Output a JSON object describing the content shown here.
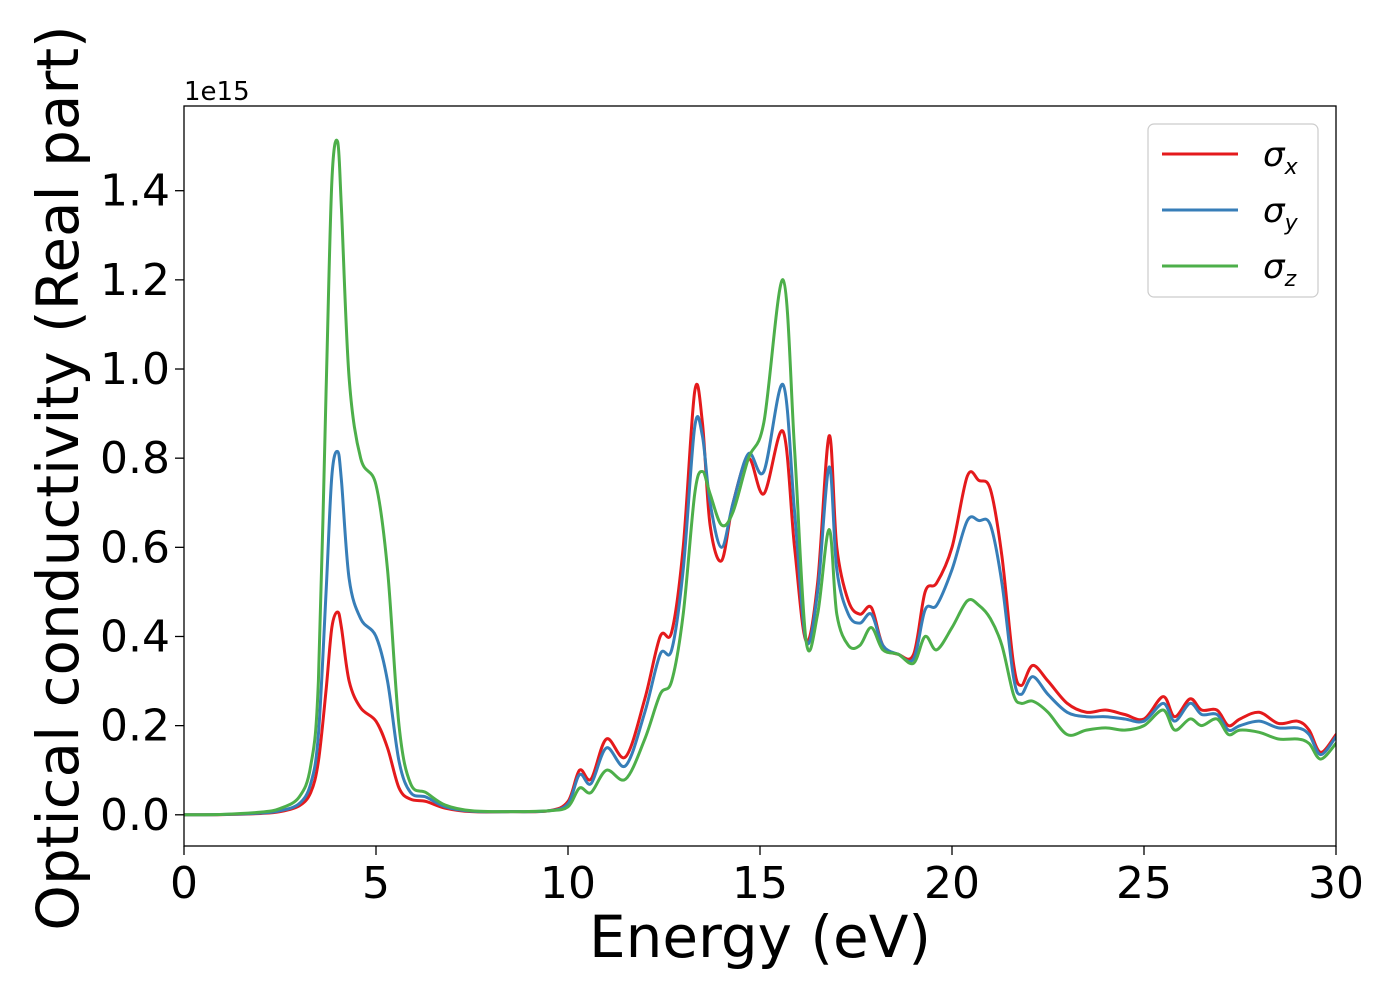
{
  "chart_data": {
    "type": "line",
    "xlabel": "Energy (eV)",
    "ylabel": "Optical conductivity (Real part)",
    "y_offset_label": "1e15",
    "xlim": [
      0,
      30
    ],
    "ylim": [
      -0.07,
      1.59
    ],
    "xticks": [
      0,
      5,
      10,
      15,
      20,
      25,
      30
    ],
    "yticks": [
      0.0,
      0.2,
      0.4,
      0.6,
      0.8,
      1.0,
      1.2,
      1.4
    ],
    "ytick_labels": [
      "0.0",
      "0.2",
      "0.4",
      "0.6",
      "0.8",
      "1.0",
      "1.2",
      "1.4"
    ],
    "grid": false,
    "legend_position": "top-right",
    "series": [
      {
        "name": "σx",
        "symbol": "σ",
        "subscript": "x",
        "color": "#e41a1c",
        "x": [
          0,
          1,
          2,
          2.5,
          3,
          3.3,
          3.5,
          3.7,
          3.85,
          4.0,
          4.1,
          4.3,
          4.6,
          5.0,
          5.3,
          5.6,
          5.9,
          6.3,
          6.8,
          7.5,
          8.5,
          9.5,
          10.0,
          10.3,
          10.6,
          11.0,
          11.5,
          12.0,
          12.4,
          12.7,
          13.0,
          13.3,
          13.5,
          13.7,
          14.0,
          14.3,
          14.7,
          15.1,
          15.6,
          15.9,
          16.2,
          16.5,
          16.8,
          17.0,
          17.3,
          17.6,
          17.9,
          18.2,
          18.6,
          19.0,
          19.3,
          19.6,
          20.0,
          20.4,
          20.7,
          21.0,
          21.3,
          21.6,
          21.8,
          22.1,
          22.5,
          23.0,
          23.5,
          24.0,
          24.5,
          25.0,
          25.5,
          25.8,
          26.2,
          26.5,
          26.9,
          27.2,
          27.5,
          28.0,
          28.5,
          29.0,
          29.3,
          29.6,
          30.0
        ],
        "y": [
          0,
          0.0005,
          0.003,
          0.007,
          0.02,
          0.05,
          0.12,
          0.28,
          0.42,
          0.455,
          0.42,
          0.3,
          0.24,
          0.21,
          0.15,
          0.06,
          0.035,
          0.03,
          0.015,
          0.007,
          0.007,
          0.009,
          0.03,
          0.1,
          0.08,
          0.17,
          0.13,
          0.26,
          0.4,
          0.41,
          0.6,
          0.95,
          0.88,
          0.65,
          0.57,
          0.7,
          0.8,
          0.72,
          0.86,
          0.6,
          0.39,
          0.52,
          0.85,
          0.6,
          0.48,
          0.45,
          0.465,
          0.38,
          0.36,
          0.36,
          0.5,
          0.52,
          0.6,
          0.76,
          0.75,
          0.73,
          0.58,
          0.34,
          0.29,
          0.335,
          0.3,
          0.25,
          0.23,
          0.235,
          0.225,
          0.215,
          0.265,
          0.22,
          0.26,
          0.235,
          0.235,
          0.2,
          0.215,
          0.23,
          0.205,
          0.21,
          0.19,
          0.14,
          0.18
        ]
      },
      {
        "name": "σy",
        "symbol": "σ",
        "subscript": "y",
        "color": "#377eb8",
        "x": [
          0,
          1,
          2,
          2.5,
          3,
          3.3,
          3.5,
          3.7,
          3.85,
          4.0,
          4.1,
          4.3,
          4.6,
          5.0,
          5.3,
          5.6,
          5.9,
          6.3,
          6.8,
          7.5,
          8.5,
          9.5,
          10.0,
          10.3,
          10.6,
          11.0,
          11.5,
          12.0,
          12.4,
          12.7,
          13.0,
          13.3,
          13.5,
          13.7,
          14.0,
          14.3,
          14.7,
          15.1,
          15.6,
          15.9,
          16.2,
          16.5,
          16.8,
          17.0,
          17.3,
          17.6,
          17.9,
          18.2,
          18.6,
          19.0,
          19.3,
          19.6,
          20.0,
          20.4,
          20.7,
          21.0,
          21.3,
          21.6,
          21.8,
          22.1,
          22.5,
          23.0,
          23.5,
          24.0,
          24.5,
          25.0,
          25.5,
          25.8,
          26.2,
          26.5,
          26.9,
          27.2,
          27.5,
          28.0,
          28.5,
          29.0,
          29.3,
          29.6,
          30.0
        ],
        "y": [
          0,
          0.0006,
          0.004,
          0.009,
          0.025,
          0.07,
          0.18,
          0.5,
          0.76,
          0.815,
          0.75,
          0.53,
          0.44,
          0.4,
          0.3,
          0.12,
          0.05,
          0.04,
          0.018,
          0.008,
          0.007,
          0.009,
          0.025,
          0.09,
          0.07,
          0.15,
          0.11,
          0.23,
          0.36,
          0.37,
          0.55,
          0.87,
          0.85,
          0.7,
          0.6,
          0.7,
          0.81,
          0.77,
          0.965,
          0.68,
          0.39,
          0.5,
          0.78,
          0.55,
          0.45,
          0.43,
          0.45,
          0.38,
          0.36,
          0.35,
          0.46,
          0.47,
          0.55,
          0.66,
          0.66,
          0.65,
          0.52,
          0.31,
          0.27,
          0.31,
          0.27,
          0.23,
          0.22,
          0.22,
          0.215,
          0.21,
          0.25,
          0.21,
          0.25,
          0.225,
          0.225,
          0.19,
          0.2,
          0.21,
          0.195,
          0.195,
          0.18,
          0.135,
          0.175
        ]
      },
      {
        "name": "σz",
        "symbol": "σ",
        "subscript": "z",
        "color": "#4daf4a",
        "x": [
          0,
          1,
          2,
          2.5,
          3,
          3.3,
          3.5,
          3.7,
          3.85,
          4.0,
          4.1,
          4.3,
          4.6,
          5.0,
          5.3,
          5.6,
          5.9,
          6.3,
          6.8,
          7.5,
          8.5,
          9.5,
          10.0,
          10.3,
          10.6,
          11.0,
          11.5,
          12.0,
          12.4,
          12.7,
          13.0,
          13.3,
          13.5,
          13.7,
          14.0,
          14.3,
          14.7,
          15.1,
          15.6,
          15.9,
          16.2,
          16.5,
          16.8,
          17.0,
          17.3,
          17.6,
          17.9,
          18.2,
          18.6,
          19.0,
          19.3,
          19.6,
          20.0,
          20.4,
          20.7,
          21.0,
          21.3,
          21.6,
          21.8,
          22.1,
          22.5,
          23.0,
          23.5,
          24.0,
          24.5,
          25.0,
          25.5,
          25.8,
          26.2,
          26.5,
          26.9,
          27.2,
          27.5,
          28.0,
          28.5,
          29.0,
          29.3,
          29.6,
          30.0
        ],
        "y": [
          0,
          0.001,
          0.006,
          0.014,
          0.04,
          0.11,
          0.3,
          0.95,
          1.42,
          1.51,
          1.36,
          0.98,
          0.8,
          0.74,
          0.55,
          0.2,
          0.07,
          0.05,
          0.022,
          0.009,
          0.007,
          0.009,
          0.018,
          0.06,
          0.05,
          0.1,
          0.08,
          0.17,
          0.27,
          0.3,
          0.45,
          0.72,
          0.77,
          0.72,
          0.65,
          0.68,
          0.8,
          0.88,
          1.2,
          0.82,
          0.39,
          0.45,
          0.64,
          0.45,
          0.38,
          0.38,
          0.42,
          0.37,
          0.36,
          0.34,
          0.4,
          0.37,
          0.42,
          0.48,
          0.47,
          0.44,
          0.38,
          0.27,
          0.25,
          0.255,
          0.23,
          0.18,
          0.19,
          0.195,
          0.19,
          0.2,
          0.235,
          0.19,
          0.215,
          0.2,
          0.215,
          0.18,
          0.19,
          0.185,
          0.17,
          0.17,
          0.16,
          0.125,
          0.16
        ]
      }
    ]
  }
}
